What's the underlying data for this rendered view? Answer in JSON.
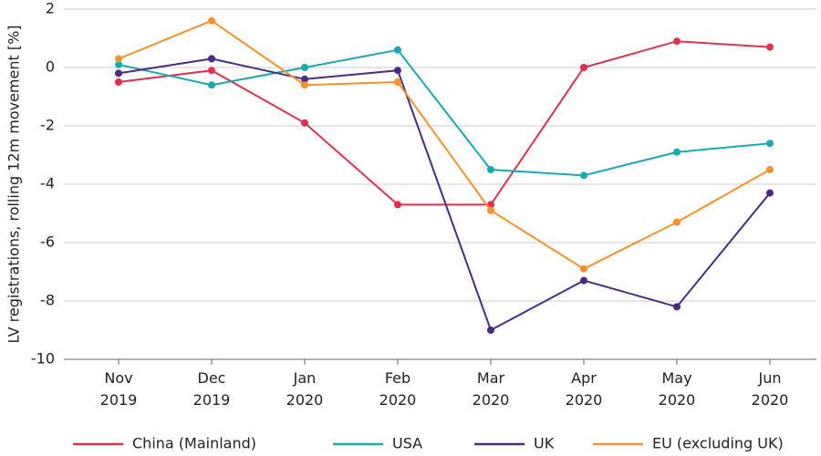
{
  "chart_data": {
    "type": "line",
    "ylabel": "LV registrations, rolling 12m movement [%]",
    "categories": [
      "Nov 2019",
      "Dec 2019",
      "Jan 2020",
      "Feb 2020",
      "Mar 2020",
      "Apr 2020",
      "May 2020",
      "Jun 2020"
    ],
    "series": [
      {
        "name": "China (Mainland)",
        "color": "#e0304e",
        "values": [
          -0.5,
          -0.1,
          -1.9,
          -4.7,
          -4.7,
          0.0,
          0.9,
          0.7
        ]
      },
      {
        "name": "USA",
        "color": "#17aab5",
        "values": [
          0.1,
          -0.6,
          0.0,
          0.6,
          -3.5,
          -3.7,
          -2.9,
          -2.6
        ]
      },
      {
        "name": "UK",
        "color": "#4b2a85",
        "values": [
          -0.2,
          0.3,
          -0.4,
          -0.1,
          -9.0,
          -7.3,
          -8.2,
          -4.3
        ]
      },
      {
        "name": "EU (excluding UK)",
        "color": "#f5922a",
        "values": [
          0.3,
          1.6,
          -0.6,
          -0.5,
          -4.9,
          -6.9,
          -5.3,
          -3.5
        ]
      }
    ],
    "ylim": [
      -10,
      2
    ],
    "yticks": [
      -10,
      -8,
      -6,
      -4,
      -2,
      0,
      2
    ],
    "grid": true
  }
}
